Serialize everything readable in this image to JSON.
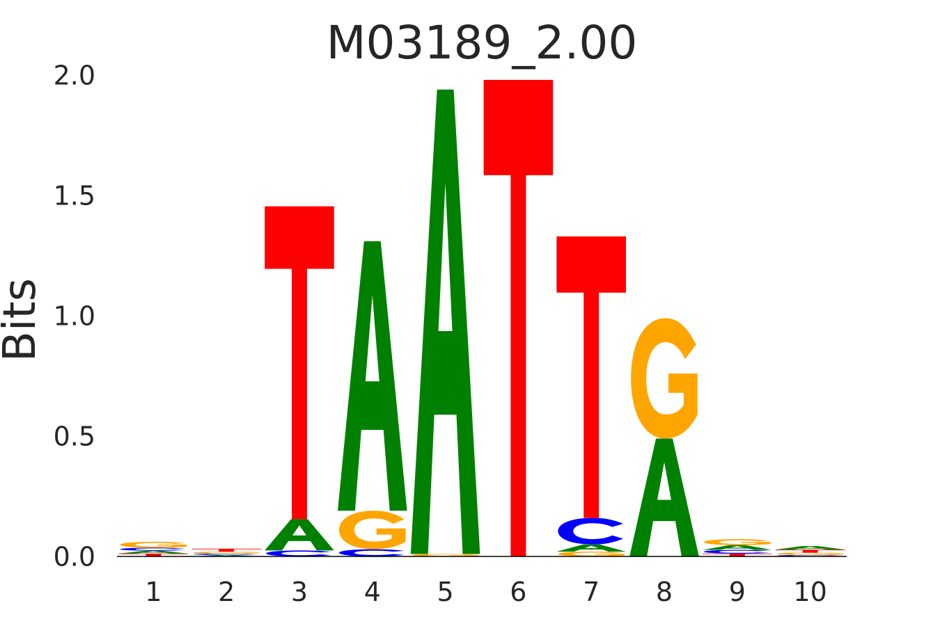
{
  "chart_data": {
    "type": "sequence-logo",
    "title": "M03189_2.00",
    "ylabel": "Bits",
    "xlabel": "",
    "ylim": [
      0,
      2.0
    ],
    "yticks": [
      "0.0",
      "0.5",
      "1.0",
      "1.5",
      "2.0"
    ],
    "ytick_values": [
      0.0,
      0.5,
      1.0,
      1.5,
      2.0
    ],
    "positions": [
      "1",
      "2",
      "3",
      "4",
      "5",
      "6",
      "7",
      "8",
      "9",
      "10"
    ],
    "colors": {
      "A": "#008000",
      "C": "#0000ff",
      "G": "#ffa500",
      "T": "#ff0000"
    },
    "stacks": [
      [
        {
          "base": "T",
          "bits": 0.012
        },
        {
          "base": "A",
          "bits": 0.012
        },
        {
          "base": "C",
          "bits": 0.012
        },
        {
          "base": "G",
          "bits": 0.025
        }
      ],
      [
        {
          "base": "A",
          "bits": 0.006
        },
        {
          "base": "C",
          "bits": 0.006
        },
        {
          "base": "G",
          "bits": 0.008
        },
        {
          "base": "T",
          "bits": 0.012
        }
      ],
      [
        {
          "base": "C",
          "bits": 0.025
        },
        {
          "base": "A",
          "bits": 0.13
        },
        {
          "base": "T",
          "bits": 1.3
        }
      ],
      [
        {
          "base": "C",
          "bits": 0.03
        },
        {
          "base": "G",
          "bits": 0.16
        },
        {
          "base": "A",
          "bits": 1.12
        }
      ],
      [
        {
          "base": "G",
          "bits": 0.01
        },
        {
          "base": "A",
          "bits": 1.93
        }
      ],
      [
        {
          "base": "T",
          "bits": 1.98
        }
      ],
      [
        {
          "base": "G",
          "bits": 0.02
        },
        {
          "base": "A",
          "bits": 0.03
        },
        {
          "base": "C",
          "bits": 0.11
        },
        {
          "base": "T",
          "bits": 1.17
        }
      ],
      [
        {
          "base": "A",
          "bits": 0.49
        },
        {
          "base": "G",
          "bits": 0.5
        }
      ],
      [
        {
          "base": "T",
          "bits": 0.012
        },
        {
          "base": "C",
          "bits": 0.015
        },
        {
          "base": "A",
          "bits": 0.02
        },
        {
          "base": "G",
          "bits": 0.025
        }
      ],
      [
        {
          "base": "C",
          "bits": 0.006
        },
        {
          "base": "G",
          "bits": 0.01
        },
        {
          "base": "T",
          "bits": 0.012
        },
        {
          "base": "A",
          "bits": 0.015
        }
      ]
    ]
  }
}
